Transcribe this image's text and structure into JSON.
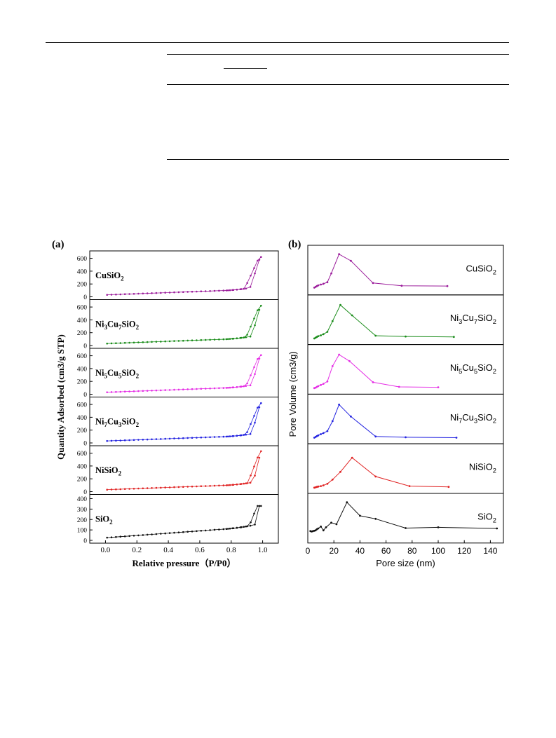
{
  "panels": {
    "a": "(a)",
    "b": "(b)"
  },
  "chart_data": [
    {
      "type": "line",
      "panel": "(a)",
      "xlabel": "Relative pressure（P/P0）",
      "ylabel": "Quantity Adsorbed (cm3/g STP)",
      "xlim": [
        -0.1,
        1.1
      ],
      "xticks": [
        "0.0",
        "0.2",
        "0.4",
        "0.6",
        "0.8",
        "1.0"
      ],
      "subplots": [
        {
          "name": "Cu/SiO2",
          "sample_base": "Cu",
          "sample_sub": "",
          "sample_mid": "",
          "sample_sub2": "",
          "color": "#9b1c9b",
          "ylim": [
            0,
            650
          ],
          "yticks": [
            0,
            200,
            400,
            600
          ],
          "cap": 620,
          "high": 560,
          "knee": 0.92,
          "base": 30,
          "slope": 90
        },
        {
          "name": "Ni3Cu7/SiO2",
          "sample_base": "Ni",
          "sample_sub": "3",
          "sample_mid": "Cu",
          "sample_sub2": "7",
          "color": "#1a8c1a",
          "ylim": [
            0,
            650
          ],
          "yticks": [
            0,
            200,
            400,
            600
          ],
          "cap": 620,
          "high": 560,
          "knee": 0.93,
          "base": 30,
          "slope": 90
        },
        {
          "name": "Ni5Cu5/SiO2",
          "sample_base": "Ni",
          "sample_sub": "5",
          "sample_mid": "Cu",
          "sample_sub2": "5",
          "color": "#e52ee5",
          "ylim": [
            0,
            650
          ],
          "yticks": [
            0,
            200,
            400,
            600
          ],
          "cap": 610,
          "high": 560,
          "knee": 0.93,
          "base": 30,
          "slope": 90
        },
        {
          "name": "Ni7Cu3/SiO2",
          "sample_base": "Ni",
          "sample_sub": "7",
          "sample_mid": "Cu",
          "sample_sub2": "3",
          "color": "#2323e0",
          "ylim": [
            0,
            650
          ],
          "yticks": [
            0,
            200,
            400,
            600
          ],
          "cap": 620,
          "high": 560,
          "knee": 0.93,
          "base": 30,
          "slope": 90
        },
        {
          "name": "Ni/SiO2",
          "sample_base": "Ni",
          "sample_sub": "",
          "sample_mid": "",
          "sample_sub2": "",
          "color": "#e02323",
          "ylim": [
            0,
            650
          ],
          "yticks": [
            0,
            200,
            400,
            600
          ],
          "cap": 630,
          "high": 560,
          "knee": 0.94,
          "base": 30,
          "slope": 90
        },
        {
          "name": "SiO2",
          "sample_base": "",
          "sample_sub": "",
          "sample_mid": "",
          "sample_sub2": "",
          "color": "#111111",
          "ylim": [
            0,
            400
          ],
          "yticks": [
            0,
            100,
            200,
            300,
            400
          ],
          "cap": 330,
          "high": 300,
          "knee": 0.95,
          "base": 25,
          "slope": 110
        }
      ]
    },
    {
      "type": "line",
      "panel": "(b)",
      "xlabel": "Pore size (nm)",
      "ylabel": "Pore Volume (cm3/g)",
      "xlim": [
        0,
        150
      ],
      "xticks": [
        0,
        20,
        40,
        60,
        80,
        100,
        120,
        140
      ],
      "subplots": [
        {
          "name": "Cu/SiO2",
          "sample_base": "Cu",
          "sample_sub": "",
          "sample_mid": "",
          "sample_sub2": "",
          "color": "#9b1c9b",
          "x": [
            5,
            6,
            7,
            8,
            10,
            12,
            15,
            18,
            24,
            33,
            50,
            72,
            107
          ],
          "y": [
            0.08,
            0.1,
            0.12,
            0.14,
            0.16,
            0.18,
            0.22,
            0.45,
            0.95,
            0.78,
            0.2,
            0.13,
            0.12
          ]
        },
        {
          "name": "Ni3Cu7/SiO2",
          "sample_base": "Ni",
          "sample_sub": "3",
          "sample_mid": "Cu",
          "sample_sub2": "7",
          "color": "#1a8c1a",
          "x": [
            5,
            6,
            7,
            8,
            10,
            12,
            15,
            19,
            25,
            34,
            52,
            75,
            112
          ],
          "y": [
            0.05,
            0.07,
            0.09,
            0.11,
            0.13,
            0.16,
            0.22,
            0.5,
            0.92,
            0.65,
            0.12,
            0.1,
            0.09
          ]
        },
        {
          "name": "Ni5Cu5/SiO2",
          "sample_base": "Ni",
          "sample_sub": "5",
          "sample_mid": "Cu",
          "sample_sub2": "5",
          "color": "#e52ee5",
          "x": [
            5,
            6,
            7,
            8,
            10,
            12,
            15,
            19,
            24,
            32,
            50,
            70,
            100
          ],
          "y": [
            0.05,
            0.06,
            0.08,
            0.1,
            0.13,
            0.16,
            0.22,
            0.62,
            0.92,
            0.75,
            0.2,
            0.08,
            0.07
          ]
        },
        {
          "name": "Ni7Cu3/SiO2",
          "sample_base": "Ni",
          "sample_sub": "7",
          "sample_mid": "Cu",
          "sample_sub2": "3",
          "color": "#2323e0",
          "x": [
            5,
            6,
            7,
            8,
            10,
            12,
            15,
            19,
            24,
            33,
            52,
            75,
            114
          ],
          "y": [
            0.05,
            0.07,
            0.09,
            0.11,
            0.14,
            0.17,
            0.22,
            0.48,
            0.91,
            0.6,
            0.08,
            0.06,
            0.05
          ]
        },
        {
          "name": "Ni/SiO2",
          "sample_base": "Ni",
          "sample_sub": "",
          "sample_mid": "",
          "sample_sub2": "",
          "color": "#e02323",
          "x": [
            5,
            6,
            7,
            8,
            10,
            12,
            15,
            19,
            25,
            34,
            52,
            78,
            108
          ],
          "y": [
            0.04,
            0.05,
            0.06,
            0.07,
            0.08,
            0.1,
            0.14,
            0.25,
            0.45,
            0.82,
            0.33,
            0.08,
            0.06
          ]
        },
        {
          "name": "SiO2",
          "sample_base": "",
          "sample_sub": "",
          "sample_mid": "",
          "sample_sub2": "",
          "color": "#111111",
          "x": [
            2,
            3,
            4,
            5,
            6,
            7,
            8,
            10,
            12,
            14,
            18,
            22,
            30,
            40,
            52,
            75,
            100,
            145
          ],
          "y": [
            0.2,
            0.19,
            0.2,
            0.21,
            0.22,
            0.25,
            0.27,
            0.32,
            0.22,
            0.3,
            0.42,
            0.38,
            0.95,
            0.6,
            0.52,
            0.28,
            0.3,
            0.27
          ]
        }
      ]
    }
  ]
}
